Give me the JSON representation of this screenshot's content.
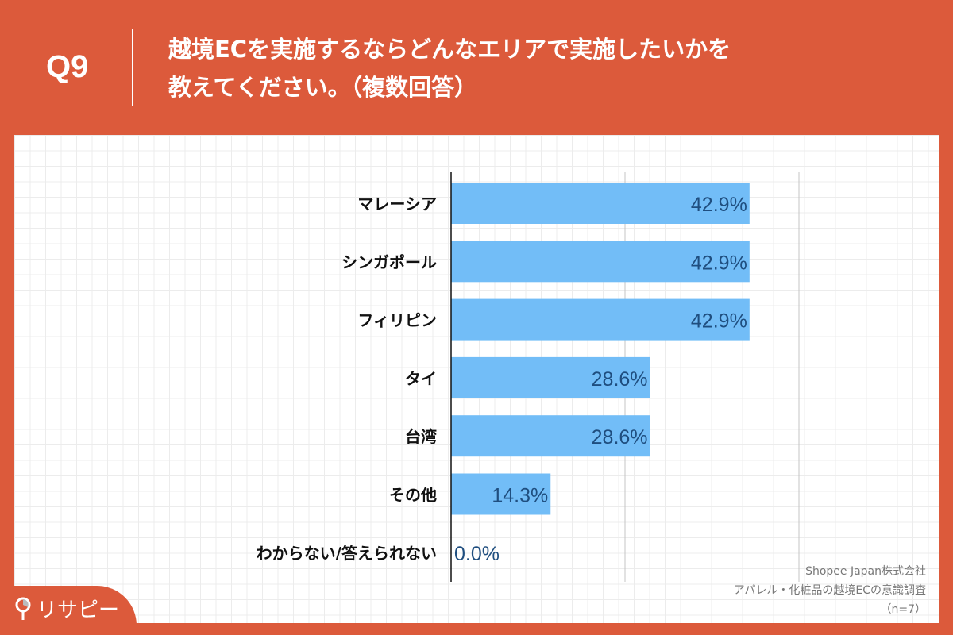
{
  "header": {
    "question_number": "Q9",
    "title_line1": "越境ECを実施するならどんなエリアで実施したいかを",
    "title_line2": "教えてください。（複数回答）"
  },
  "colors": {
    "background": "#DC5A3B",
    "bar": "#72BDF7",
    "value_label": "#1F4E7F"
  },
  "logo": {
    "text": "リサピー"
  },
  "source": {
    "line1": "Shopee Japan株式会社",
    "line2": "アパレル・化粧品の越境ECの意識調査",
    "line3": "（n=7）"
  },
  "chart_data": {
    "type": "bar",
    "orientation": "horizontal",
    "categories": [
      "マレーシア",
      "シンガポール",
      "フィリピン",
      "タイ",
      "台湾",
      "その他",
      "わからない/答えられない"
    ],
    "values": [
      42.9,
      42.9,
      42.9,
      28.6,
      28.6,
      14.3,
      0.0
    ],
    "value_labels": [
      "42.9%",
      "42.9%",
      "42.9%",
      "28.6%",
      "28.6%",
      "14.3%",
      "0.0%"
    ],
    "xlim": [
      0,
      50
    ],
    "grid": true
  }
}
